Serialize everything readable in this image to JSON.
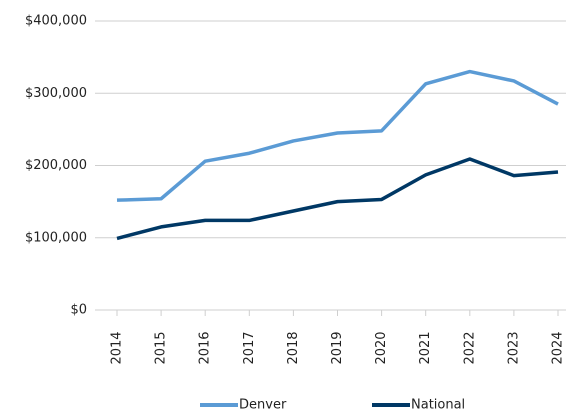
{
  "chart_data": {
    "type": "line",
    "categories": [
      "2014",
      "2015",
      "2016",
      "2017",
      "2018",
      "2019",
      "2020",
      "2021",
      "2022",
      "2023",
      "2024"
    ],
    "series": [
      {
        "name": "Denver",
        "color": "#5b9bd5",
        "values": [
          152000,
          154000,
          206000,
          217000,
          234000,
          245000,
          248000,
          313000,
          330000,
          317000,
          285000
        ]
      },
      {
        "name": "National",
        "color": "#003865",
        "values": [
          99000,
          115000,
          124000,
          124000,
          137000,
          150000,
          153000,
          187000,
          209000,
          186000,
          191000
        ]
      }
    ],
    "ylim": [
      0,
      400000
    ],
    "yticks": [
      {
        "value": 0,
        "label": "$0"
      },
      {
        "value": 100000,
        "label": "$100,000"
      },
      {
        "value": 200000,
        "label": "$200,000"
      },
      {
        "value": 300000,
        "label": "$300,000"
      },
      {
        "value": 400000,
        "label": "$400,000"
      }
    ],
    "grid": true,
    "legend": "bottom"
  }
}
